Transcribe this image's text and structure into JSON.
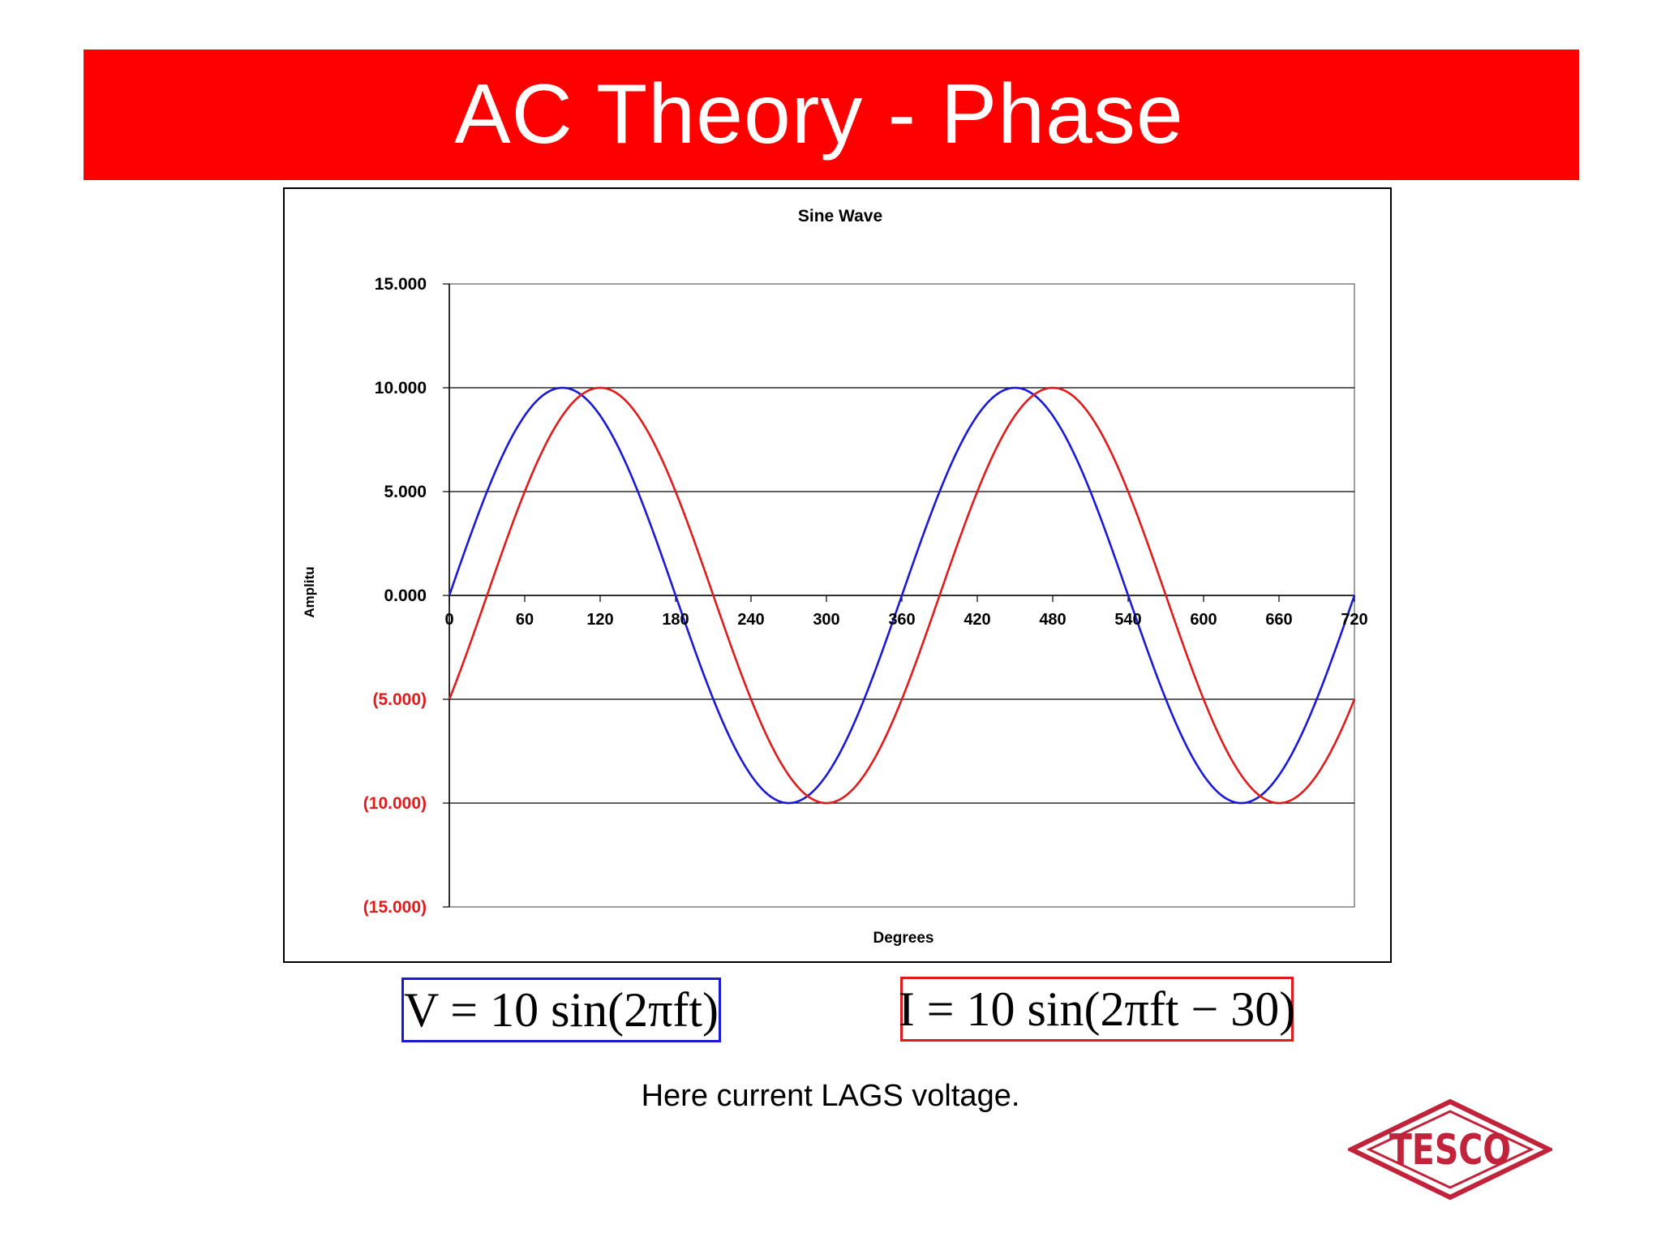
{
  "slide": {
    "title": "AC Theory - Phase",
    "caption": "Here current LAGS voltage."
  },
  "formulas": {
    "voltage": "V = 10 sin(2πft)",
    "current": "I = 10 sin(2πft − 30)"
  },
  "logo": {
    "text": "TESCO",
    "color": "#c0233a"
  },
  "colors": {
    "title_bar": "#ff0000",
    "voltage": "#1a1ad6",
    "current": "#e01b1b",
    "negative_label": "#e01b1b"
  },
  "chart_data": {
    "type": "line",
    "title": "Sine Wave",
    "xlabel": "Degrees",
    "ylabel": "Amplitu",
    "xlim": [
      0,
      720
    ],
    "ylim": [
      -15,
      15
    ],
    "xticks": [
      "0",
      "60",
      "120",
      "180",
      "240",
      "300",
      "360",
      "420",
      "480",
      "540",
      "600",
      "660",
      "720"
    ],
    "yticks": [
      "15.000",
      "10.000",
      "5.000",
      "0.000",
      "(5.000)",
      "(10.000)",
      "(15.000)"
    ],
    "grid": "horizontal",
    "legend": "none",
    "series": [
      {
        "formula": "10*sin(x)",
        "amplitude": 10,
        "phase_deg": 0,
        "color": "#1a1ad6"
      },
      {
        "formula": "10*sin(x-30)",
        "amplitude": 10,
        "phase_deg": -30,
        "color": "#e01b1b"
      }
    ]
  }
}
